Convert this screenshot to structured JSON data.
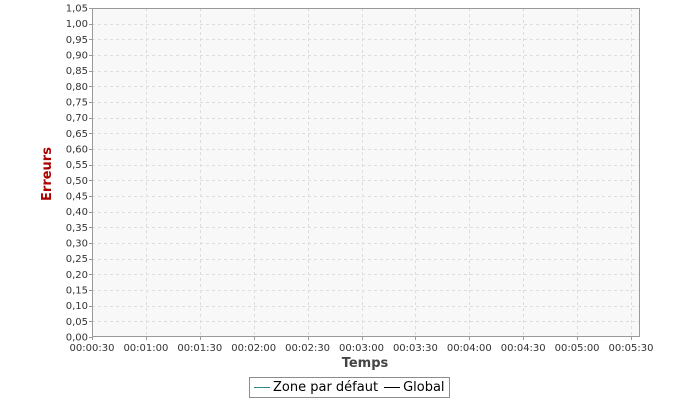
{
  "chart_data": {
    "type": "line",
    "title": "",
    "xlabel": "Temps",
    "ylabel": "Erreurs",
    "x_ticks": [
      "00:00:30",
      "00:01:00",
      "00:01:30",
      "00:02:00",
      "00:02:30",
      "00:03:00",
      "00:03:30",
      "00:04:00",
      "00:04:30",
      "00:05:00",
      "00:05:30"
    ],
    "y_ticks": [
      "0,00",
      "0,05",
      "0,10",
      "0,15",
      "0,20",
      "0,25",
      "0,30",
      "0,35",
      "0,40",
      "0,45",
      "0,50",
      "0,55",
      "0,60",
      "0,65",
      "0,70",
      "0,75",
      "0,80",
      "0,85",
      "0,90",
      "0,95",
      "1,00",
      "1,05"
    ],
    "xlim": [
      "00:00:30",
      "00:05:30"
    ],
    "ylim": [
      0,
      1.05
    ],
    "grid": true,
    "legend_position": "bottom-center",
    "series": [
      {
        "name": "Zone par défaut",
        "color": "#2a8c8c",
        "values": []
      },
      {
        "name": "Global",
        "color": "#000000",
        "values": []
      }
    ],
    "colors": {
      "ylabel": "#aa0000",
      "xlabel": "#444444",
      "plot_background": "#f8f8f8",
      "grid": "#dddddd",
      "axis": "#999999"
    }
  }
}
